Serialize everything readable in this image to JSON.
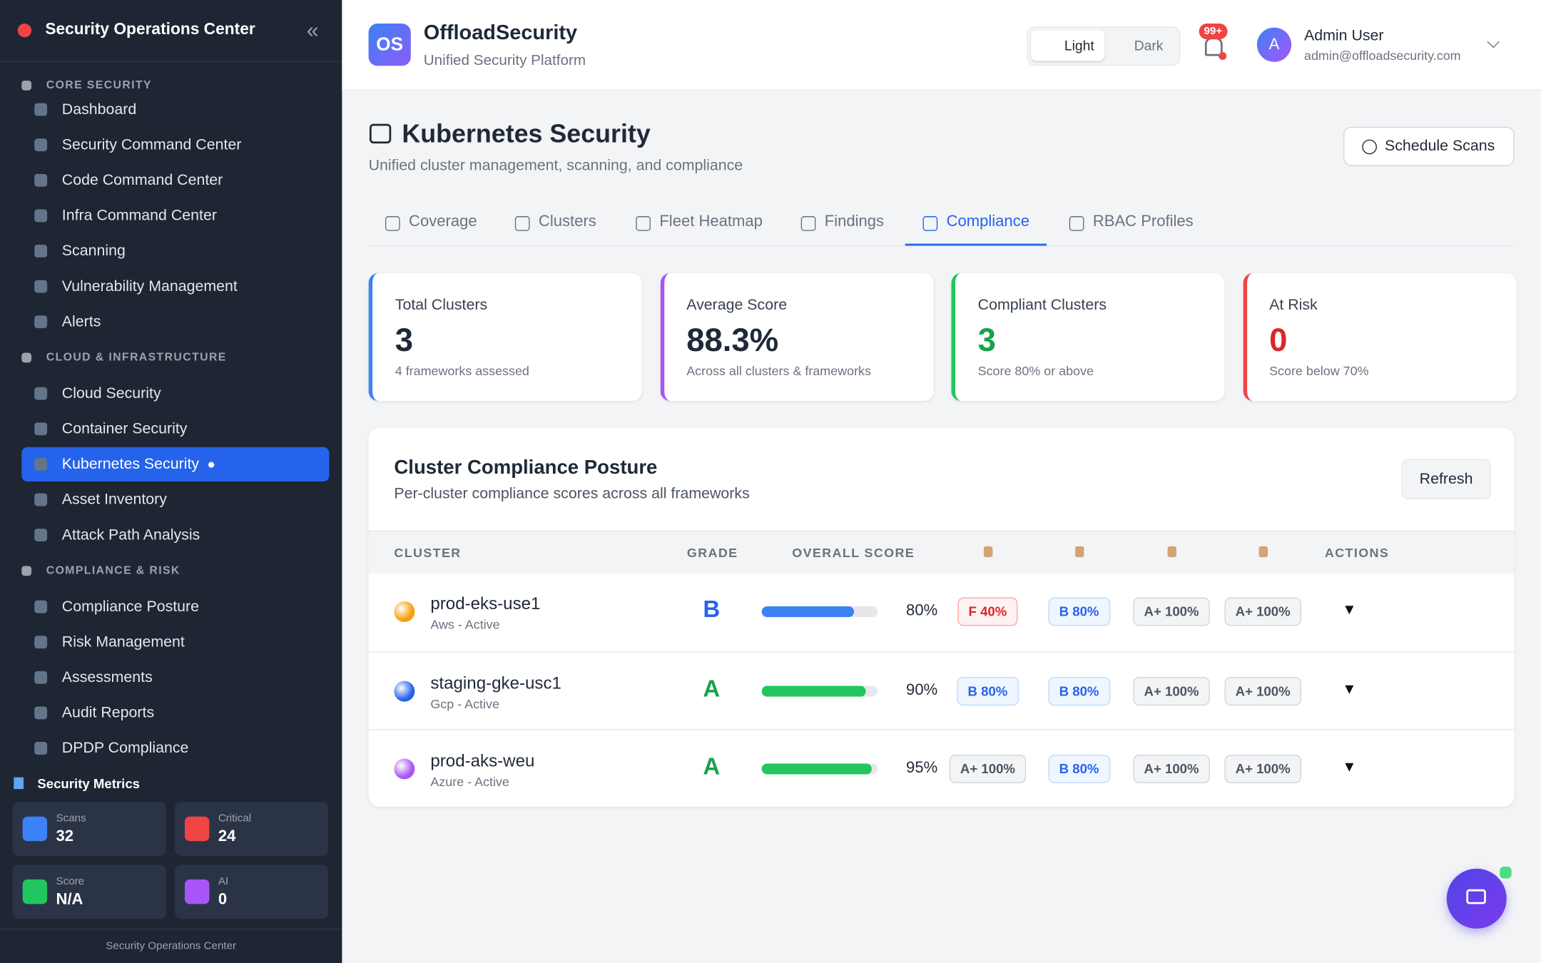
{
  "sidebar": {
    "title": "Security Operations Center",
    "sections": [
      {
        "heading": "CORE SECURITY",
        "items": [
          "Dashboard",
          "Security Command Center",
          "Code Command Center",
          "Infra Command Center",
          "Scanning",
          "Vulnerability Management",
          "Alerts"
        ]
      },
      {
        "heading": "CLOUD & INFRASTRUCTURE",
        "items": [
          "Cloud Security",
          "Container Security",
          "Kubernetes Security",
          "Asset Inventory",
          "Attack Path Analysis"
        ]
      },
      {
        "heading": "COMPLIANCE & RISK",
        "items": [
          "Compliance Posture",
          "Risk Management",
          "Assessments",
          "Audit Reports",
          "DPDP Compliance"
        ]
      }
    ],
    "active": "Kubernetes Security",
    "metrics_title": "Security Metrics",
    "metrics": [
      {
        "label": "Scans",
        "value": "32",
        "color": "#3b82f6"
      },
      {
        "label": "Critical",
        "value": "24",
        "color": "#ef4444"
      },
      {
        "label": "Score",
        "value": "N/A",
        "color": "#22c55e"
      },
      {
        "label": "AI",
        "value": "0",
        "color": "#a855f7"
      }
    ],
    "footer": "Security Operations Center"
  },
  "header": {
    "logo": "OS",
    "brand": "OffloadSecurity",
    "tagline": "Unified Security Platform",
    "light": "Light",
    "dark": "Dark",
    "notifications": "99+",
    "avatar": "A",
    "user": "Admin User",
    "email": "admin@offloadsecurity.com"
  },
  "page": {
    "title": "Kubernetes Security",
    "subtitle": "Unified cluster management, scanning, and compliance",
    "button": "Schedule Scans",
    "tabs": [
      "Coverage",
      "Clusters",
      "Fleet Heatmap",
      "Findings",
      "Compliance",
      "RBAC Profiles"
    ],
    "active_tab": "Compliance",
    "cards": [
      {
        "label": "Total Clusters",
        "value": "3",
        "note": "4 frameworks assessed",
        "color": "#3b82f6",
        "value_color": "#1f2937"
      },
      {
        "label": "Average Score",
        "value": "88.3%",
        "note": "Across all clusters & frameworks",
        "color": "#a855f7",
        "value_color": "#1f2937"
      },
      {
        "label": "Compliant Clusters",
        "value": "3",
        "note": "Score 80% or above",
        "color": "#22c55e",
        "value_color": "#16a34a"
      },
      {
        "label": "At Risk",
        "value": "0",
        "note": "Score below 70%",
        "color": "#ef4444",
        "value_color": "#dc2626"
      }
    ]
  },
  "table": {
    "title": "Cluster Compliance Posture",
    "subtitle": "Per-cluster compliance scores across all frameworks",
    "refresh": "Refresh",
    "columns": [
      "CLUSTER",
      "GRADE",
      "OVERALL SCORE",
      "ACTIONS"
    ],
    "rows": [
      {
        "name": "prod-eks-use1",
        "meta": "Aws - Active",
        "color": "#f59e0b",
        "grade": "B",
        "score": {
          "value": 80,
          "label": "80%"
        },
        "frameworks": [
          "F 40%",
          "B 80%",
          "A+ 100%",
          "A+ 100%"
        ],
        "action": "▼"
      },
      {
        "name": "staging-gke-usc1",
        "meta": "Gcp - Active",
        "color": "#2563eb",
        "grade": "A",
        "score": {
          "value": 90,
          "label": "90%"
        },
        "frameworks": [
          "B 80%",
          "B 80%",
          "A+ 100%",
          "A+ 100%"
        ],
        "action": "▼"
      },
      {
        "name": "prod-aks-weu",
        "meta": "Azure - Active",
        "color": "#a855f7",
        "grade": "A",
        "score": {
          "value": 95,
          "label": "95%"
        },
        "frameworks": [
          "A+ 100%",
          "B 80%",
          "A+ 100%",
          "A+ 100%"
        ],
        "action": "▼"
      }
    ]
  }
}
